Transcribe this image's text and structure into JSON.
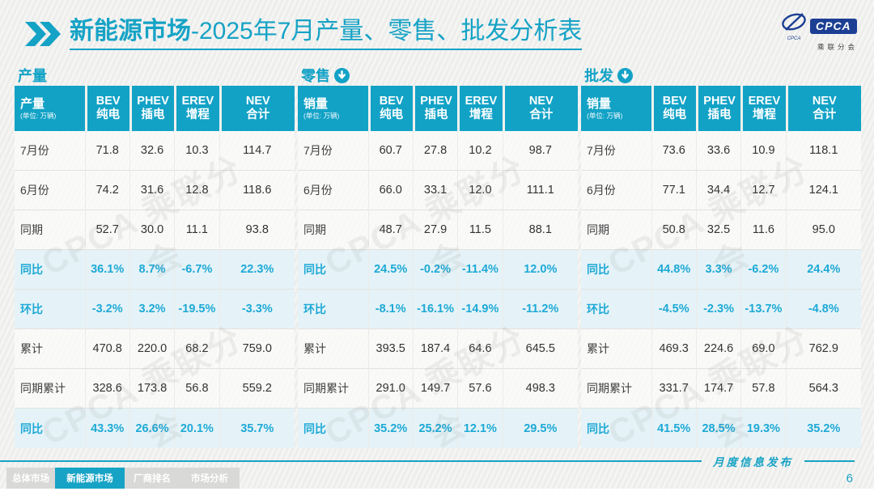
{
  "page": {
    "title_bold": "新能源市场",
    "title_rest": "-2025年7月产量、零售、批发分析表"
  },
  "logo": {
    "text": "CPCA",
    "subtext": "乘联分会",
    "small_text": "CPCA"
  },
  "watermark": {
    "text": "CPCA 乘联分会"
  },
  "colors": {
    "accent": "#12a2c6",
    "percent_text": "#1ea9d6",
    "percent_bg": "#e5f3f8",
    "active_tab": "#17a3c5"
  },
  "footer": {
    "publication": "月度信息发布",
    "page_number": "6"
  },
  "footer_tabs": [
    {
      "label": "总体市场",
      "active": false
    },
    {
      "label": "新能源市场",
      "active": true
    },
    {
      "label": "厂商排名",
      "active": false
    },
    {
      "label": "市场分析",
      "active": false
    }
  ],
  "tables": [
    {
      "section_label": "产量",
      "has_download_icon": false,
      "header": {
        "label": "产量",
        "unit": "(单位: 万辆)",
        "cols": [
          {
            "line1": "BEV",
            "line2": "纯电"
          },
          {
            "line1": "PHEV",
            "line2": "插电"
          },
          {
            "line1": "EREV",
            "line2": "增程"
          },
          {
            "line1": "NEV",
            "line2": "合计"
          }
        ]
      },
      "rows": [
        {
          "label": "7月份",
          "values": [
            "71.8",
            "32.6",
            "10.3",
            "114.7"
          ],
          "highlight": false
        },
        {
          "label": "6月份",
          "values": [
            "74.2",
            "31.6",
            "12.8",
            "118.6"
          ],
          "highlight": false
        },
        {
          "label": "同期",
          "values": [
            "52.7",
            "30.0",
            "11.1",
            "93.8"
          ],
          "highlight": false
        },
        {
          "label": "同比",
          "values": [
            "36.1%",
            "8.7%",
            "-6.7%",
            "22.3%"
          ],
          "highlight": true
        },
        {
          "label": "环比",
          "values": [
            "-3.2%",
            "3.2%",
            "-19.5%",
            "-3.3%"
          ],
          "highlight": true
        },
        {
          "label": "累计",
          "values": [
            "470.8",
            "220.0",
            "68.2",
            "759.0"
          ],
          "highlight": false
        },
        {
          "label": "同期累计",
          "values": [
            "328.6",
            "173.8",
            "56.8",
            "559.2"
          ],
          "highlight": false
        },
        {
          "label": "同比",
          "values": [
            "43.3%",
            "26.6%",
            "20.1%",
            "35.7%"
          ],
          "highlight": true
        }
      ]
    },
    {
      "section_label": "零售",
      "has_download_icon": true,
      "header": {
        "label": "销量",
        "unit": "(单位: 万辆)",
        "cols": [
          {
            "line1": "BEV",
            "line2": "纯电"
          },
          {
            "line1": "PHEV",
            "line2": "插电"
          },
          {
            "line1": "EREV",
            "line2": "增程"
          },
          {
            "line1": "NEV",
            "line2": "合计"
          }
        ]
      },
      "rows": [
        {
          "label": "7月份",
          "values": [
            "60.7",
            "27.8",
            "10.2",
            "98.7"
          ],
          "highlight": false
        },
        {
          "label": "6月份",
          "values": [
            "66.0",
            "33.1",
            "12.0",
            "111.1"
          ],
          "highlight": false
        },
        {
          "label": "同期",
          "values": [
            "48.7",
            "27.9",
            "11.5",
            "88.1"
          ],
          "highlight": false
        },
        {
          "label": "同比",
          "values": [
            "24.5%",
            "-0.2%",
            "-11.4%",
            "12.0%"
          ],
          "highlight": true
        },
        {
          "label": "环比",
          "values": [
            "-8.1%",
            "-16.1%",
            "-14.9%",
            "-11.2%"
          ],
          "highlight": true
        },
        {
          "label": "累计",
          "values": [
            "393.5",
            "187.4",
            "64.6",
            "645.5"
          ],
          "highlight": false
        },
        {
          "label": "同期累计",
          "values": [
            "291.0",
            "149.7",
            "57.6",
            "498.3"
          ],
          "highlight": false
        },
        {
          "label": "同比",
          "values": [
            "35.2%",
            "25.2%",
            "12.1%",
            "29.5%"
          ],
          "highlight": true
        }
      ]
    },
    {
      "section_label": "批发",
      "has_download_icon": true,
      "header": {
        "label": "销量",
        "unit": "(单位: 万辆)",
        "cols": [
          {
            "line1": "BEV",
            "line2": "纯电"
          },
          {
            "line1": "PHEV",
            "line2": "插电"
          },
          {
            "line1": "EREV",
            "line2": "增程"
          },
          {
            "line1": "NEV",
            "line2": "合计"
          }
        ]
      },
      "rows": [
        {
          "label": "7月份",
          "values": [
            "73.6",
            "33.6",
            "10.9",
            "118.1"
          ],
          "highlight": false
        },
        {
          "label": "6月份",
          "values": [
            "77.1",
            "34.4",
            "12.7",
            "124.1"
          ],
          "highlight": false
        },
        {
          "label": "同期",
          "values": [
            "50.8",
            "32.5",
            "11.6",
            "95.0"
          ],
          "highlight": false
        },
        {
          "label": "同比",
          "values": [
            "44.8%",
            "3.3%",
            "-6.2%",
            "24.4%"
          ],
          "highlight": true
        },
        {
          "label": "环比",
          "values": [
            "-4.5%",
            "-2.3%",
            "-13.7%",
            "-4.8%"
          ],
          "highlight": true
        },
        {
          "label": "累计",
          "values": [
            "469.3",
            "224.6",
            "69.0",
            "762.9"
          ],
          "highlight": false
        },
        {
          "label": "同期累计",
          "values": [
            "331.7",
            "174.7",
            "57.8",
            "564.3"
          ],
          "highlight": false
        },
        {
          "label": "同比",
          "values": [
            "41.5%",
            "28.5%",
            "19.3%",
            "35.2%"
          ],
          "highlight": true
        }
      ]
    }
  ]
}
